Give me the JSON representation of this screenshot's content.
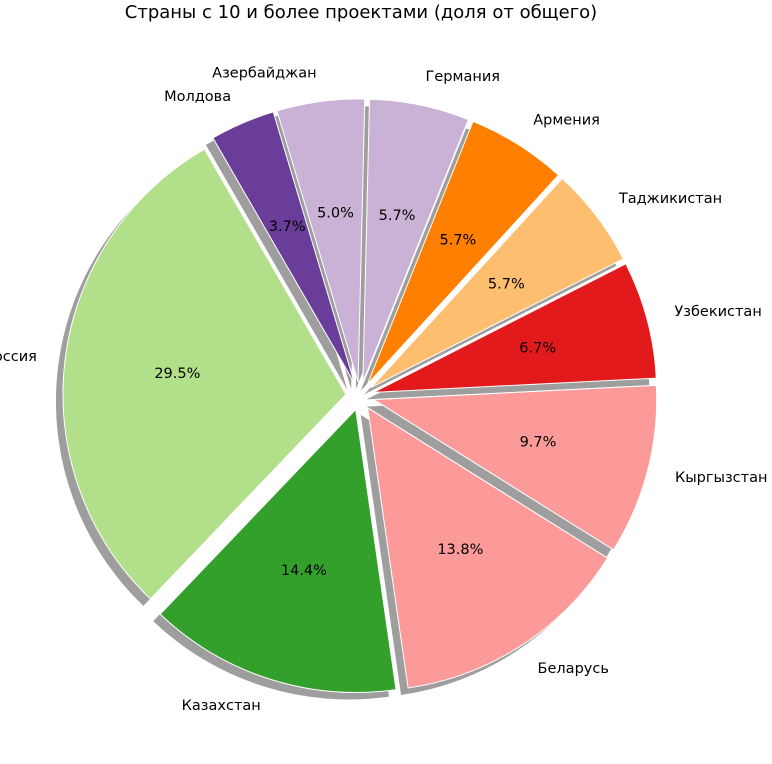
{
  "chart_data": {
    "type": "pie",
    "title": "Страны с 10 и более проектами (доля от общего)",
    "start_angle_deg": 120,
    "direction": "counterclockwise",
    "shadow": true,
    "exploded": true,
    "slices": [
      {
        "label": "Россия",
        "value": 29.5,
        "pct_label": "29.5%",
        "color": "#b2df8a"
      },
      {
        "label": "Казахстан",
        "value": 14.4,
        "pct_label": "14.4%",
        "color": "#33a02c"
      },
      {
        "label": "Беларусь",
        "value": 13.8,
        "pct_label": "13.8%",
        "color": "#fb9a99"
      },
      {
        "label": "Кыргызстан",
        "value": 9.7,
        "pct_label": "9.7%",
        "color": "#fb9a99"
      },
      {
        "label": "Узбекистан",
        "value": 6.7,
        "pct_label": "6.7%",
        "color": "#e31a1c"
      },
      {
        "label": "Таджикистан",
        "value": 5.7,
        "pct_label": "5.7%",
        "color": "#fdbf6f"
      },
      {
        "label": "Армения",
        "value": 5.7,
        "pct_label": "5.7%",
        "color": "#ff7f00"
      },
      {
        "label": "Германия",
        "value": 5.7,
        "pct_label": "5.7%",
        "color": "#cab2d6"
      },
      {
        "label": "Азербайджан",
        "value": 5.0,
        "pct_label": "5.0%",
        "color": "#cab2d6"
      },
      {
        "label": "Молдова",
        "value": 3.7,
        "pct_label": "3.7%",
        "color": "#6a3d9a"
      }
    ]
  }
}
